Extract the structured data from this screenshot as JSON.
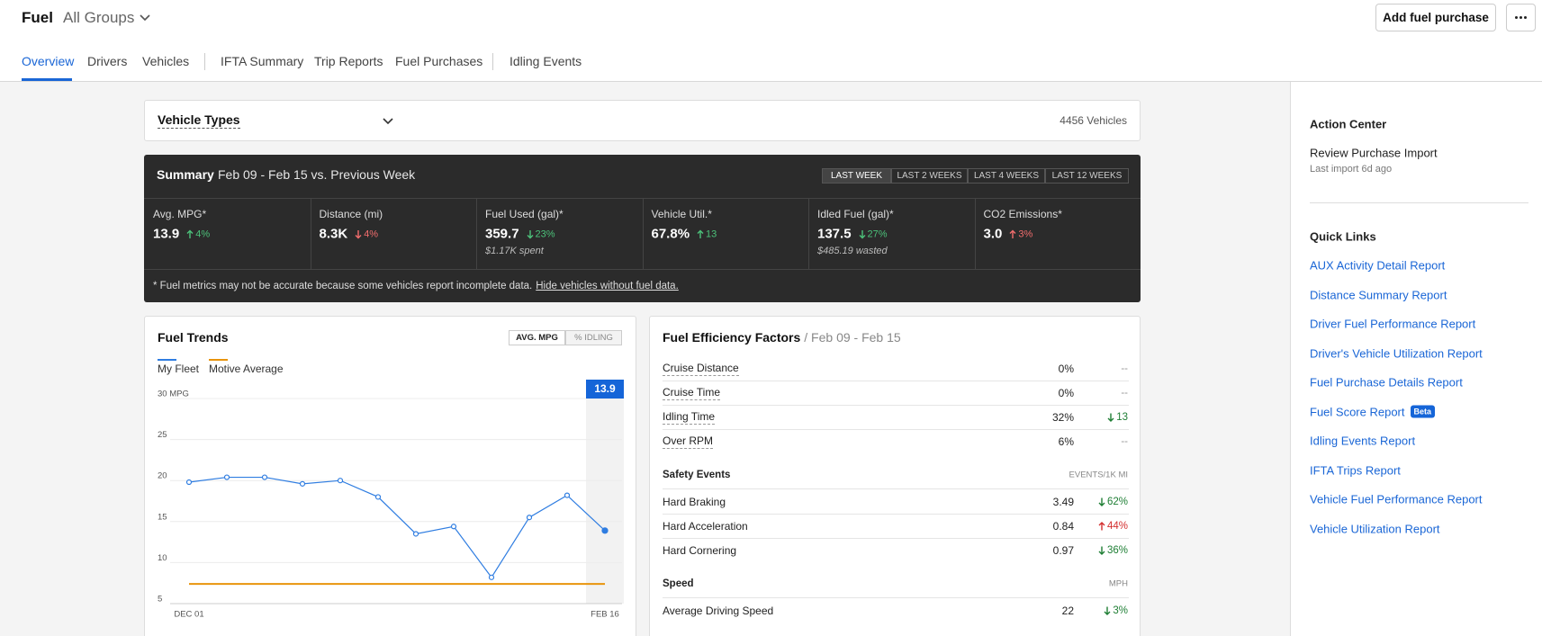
{
  "header": {
    "title": "Fuel",
    "group": "All Groups",
    "add_button": "Add fuel purchase"
  },
  "tabs": [
    "Overview",
    "Drivers",
    "Vehicles",
    "IFTA Summary",
    "Trip Reports",
    "Fuel Purchases",
    "Idling Events"
  ],
  "vehicle_types": {
    "label": "Vehicle Types",
    "count": "4456 Vehicles"
  },
  "summary": {
    "title": "Summary",
    "period": "Feb 09 - Feb 15 vs. Previous Week",
    "ranges": [
      "LAST WEEK",
      "LAST 2 WEEKS",
      "LAST 4 WEEKS",
      "LAST 12 WEEKS"
    ],
    "metrics": [
      {
        "label": "Avg. MPG*",
        "value": "13.9",
        "change": "4%",
        "direction": "up",
        "color": "#4cc27a"
      },
      {
        "label": "Distance (mi)",
        "value": "8.3K",
        "change": "4%",
        "direction": "down",
        "color": "#f26d6d"
      },
      {
        "label": "Fuel Used (gal)*",
        "value": "359.7",
        "change": "23%",
        "direction": "down",
        "color": "#4cc27a",
        "note": "$1.17K spent"
      },
      {
        "label": "Vehicle Util.*",
        "value": "67.8%",
        "change": "13",
        "direction": "up",
        "color": "#4cc27a"
      },
      {
        "label": "Idled Fuel (gal)*",
        "value": "137.5",
        "change": "27%",
        "direction": "down",
        "color": "#4cc27a",
        "note": "$485.19 wasted"
      },
      {
        "label": "CO2 Emissions*",
        "value": "3.0",
        "change": "3%",
        "direction": "up",
        "color": "#f26d6d"
      }
    ],
    "footnote": "* Fuel metrics may not be accurate because some vehicles report incomplete data.",
    "footnote_link": "Hide vehicles without fuel data."
  },
  "fuel_trends": {
    "toggles": [
      "AVG. MPG",
      "% IDLING"
    ]
  },
  "chart_data": {
    "type": "line",
    "title": "Fuel Trends",
    "categories": [
      "DEC 01",
      null,
      null,
      null,
      null,
      null,
      null,
      null,
      null,
      null,
      null,
      "FEB 16"
    ],
    "series": [
      {
        "name": "My Fleet",
        "color": "#2f7de1",
        "values": [
          19.8,
          20.4,
          20.4,
          19.6,
          20.0,
          18.0,
          13.5,
          14.4,
          8.2,
          15.5,
          18.2,
          13.9
        ]
      },
      {
        "name": "Motive Average",
        "color": "#e8940c",
        "values": [
          7.4,
          7.4,
          7.4,
          7.4,
          7.4,
          7.4,
          7.4,
          7.4,
          7.4,
          7.4,
          7.4,
          7.4
        ]
      }
    ],
    "ylim": [
      5,
      30
    ],
    "yticks": [
      {
        "value": 30,
        "label": "30 MPG"
      },
      25,
      20,
      15,
      10,
      5
    ],
    "grid": true
  },
  "efficiency": {
    "title": "Fuel Efficiency Factors",
    "period": "/ Feb 09 - Feb 15",
    "sections": [
      {
        "rows": [
          {
            "label": "Cruise Distance",
            "value": "0%",
            "change": "--"
          },
          {
            "label": "Cruise Time",
            "value": "0%",
            "change": "--"
          },
          {
            "label": "Idling Time",
            "value": "32%",
            "change": "13",
            "direction": "down",
            "color": "#1e7e34"
          },
          {
            "label": "Over RPM",
            "value": "6%",
            "change": "--"
          }
        ]
      },
      {
        "title": "Safety Events",
        "unit": "EVENTS/1K MI",
        "rows": [
          {
            "label": "Hard Braking",
            "value": "3.49",
            "change": "62%",
            "direction": "down",
            "color": "#1e7e34"
          },
          {
            "label": "Hard Acceleration",
            "value": "0.84",
            "change": "44%",
            "direction": "up",
            "color": "#d32f2f"
          },
          {
            "label": "Hard Cornering",
            "value": "0.97",
            "change": "36%",
            "direction": "down",
            "color": "#1e7e34"
          }
        ]
      },
      {
        "title": "Speed",
        "unit": "MPH",
        "rows": [
          {
            "label": "Average Driving Speed",
            "value": "22",
            "change": "3%",
            "direction": "down",
            "color": "#1e7e34"
          }
        ]
      }
    ]
  },
  "action_center": {
    "title": "Action Center",
    "item": "Review Purchase Import",
    "subtitle": "Last import 6d ago"
  },
  "quick_links": {
    "title": "Quick Links",
    "links": [
      {
        "text": "AUX Activity Detail Report"
      },
      {
        "text": "Distance Summary Report"
      },
      {
        "text": "Driver Fuel Performance Report"
      },
      {
        "text": "Driver's Vehicle Utilization Report"
      },
      {
        "text": "Fuel Purchase Details Report"
      },
      {
        "text": "Fuel Score Report",
        "badge": "Beta"
      },
      {
        "text": "Idling Events Report"
      },
      {
        "text": "IFTA Trips Report"
      },
      {
        "text": "Vehicle Fuel Performance Report"
      },
      {
        "text": "Vehicle Utilization Report"
      }
    ]
  }
}
